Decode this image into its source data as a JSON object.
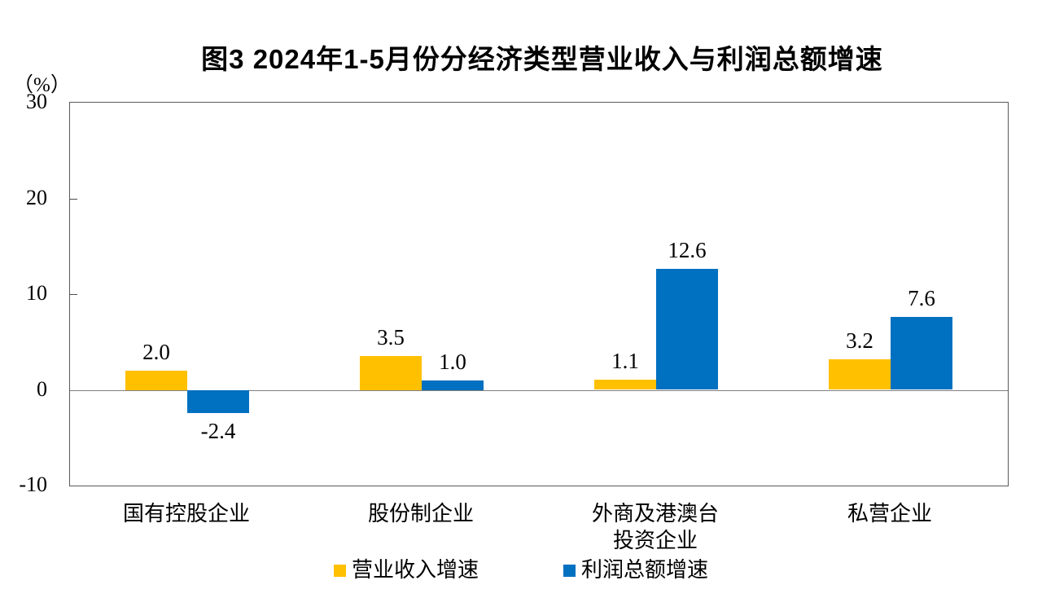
{
  "chart_data": {
    "type": "bar",
    "title": "图3 2024年1-5月份分经济类型营业收入与利润总额增速",
    "unit": "（%）",
    "categories": [
      "国有控股企业",
      "股份制企业",
      "外商及港澳台\n投资企业",
      "私营企业"
    ],
    "series": [
      {
        "name": "营业收入增速",
        "color": "#FFC000",
        "values": [
          2.0,
          3.5,
          1.1,
          3.2
        ],
        "labels": [
          "2.0",
          "3.5",
          "1.1",
          "3.2"
        ]
      },
      {
        "name": "利润总额增速",
        "color": "#0070C0",
        "values": [
          -2.4,
          1.0,
          12.6,
          7.6
        ],
        "labels": [
          "-2.4",
          "1.0",
          "12.6",
          "7.6"
        ]
      }
    ],
    "ylim": [
      -10,
      30
    ],
    "yticks": [
      30,
      20,
      10,
      0,
      -10
    ],
    "xlabel": "",
    "ylabel": "（%）",
    "grid": false,
    "legend_position": "bottom",
    "colors": {
      "axis": "#595959",
      "zero_line": "#808080",
      "text": "#000000",
      "background": "#FFFFFF"
    }
  }
}
